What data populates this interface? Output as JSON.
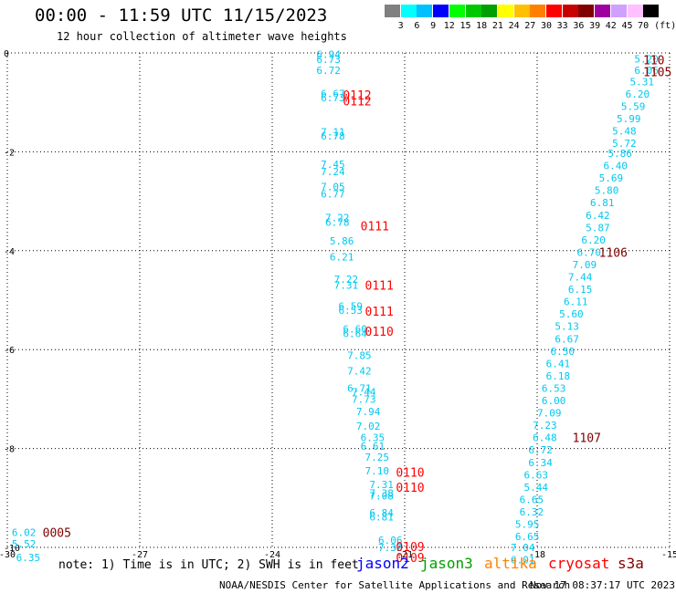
{
  "header": {
    "title": "00:00 - 11:59 UTC 11/15/2023",
    "subtitle": "12 hour collection of altimeter wave heights"
  },
  "colorbar": {
    "colors": [
      "#808080",
      "#00ffff",
      "#00c0ff",
      "#0000ff",
      "#00ff00",
      "#00c800",
      "#00a000",
      "#ffff00",
      "#ffc000",
      "#ff8000",
      "#ff0000",
      "#c80000",
      "#800000",
      "#a000a0",
      "#d0a0ff",
      "#ffc0ff",
      "#000000"
    ],
    "labels": [
      "3",
      "6",
      "9",
      "12",
      "15",
      "18",
      "21",
      "24",
      "27",
      "30",
      "33",
      "36",
      "39",
      "42",
      "45",
      "70"
    ],
    "unit": "(ft)"
  },
  "note": "note: 1) Time is in UTC; 2) SWH is in feet",
  "satellites": [
    {
      "name": "jason2",
      "color": "#0000ff"
    },
    {
      "name": "jason3",
      "color": "#00a000"
    },
    {
      "name": "altika",
      "color": "#ff8000"
    },
    {
      "name": "cryosat",
      "color": "#ff0000"
    },
    {
      "name": "s3a",
      "color": "#800000"
    }
  ],
  "footer": {
    "left": "NOAA/NESDIS Center for Satellite Applications and Research",
    "right": "Nov 17 08:37:17 UTC 2023"
  },
  "chart_data": {
    "type": "scatter",
    "xlim": [
      -30,
      -15
    ],
    "ylim": [
      -10,
      0
    ],
    "xticks": [
      -30,
      -27,
      -24,
      -21,
      -18,
      -15
    ],
    "xtick_labels": [
      "-30",
      "-27",
      "-24",
      "-21",
      "-18",
      "-15"
    ],
    "yticks": [
      0,
      -2,
      -4,
      -6,
      -8,
      -10
    ],
    "ytick_labels": [
      "0",
      "-2",
      "-4",
      "-6",
      "-8",
      "-10"
    ],
    "grid": true,
    "track_A": [
      {
        "x": -23.0,
        "y": -0.03,
        "v": "6.94"
      },
      {
        "x": -23.0,
        "y": -0.13,
        "v": "6.73"
      },
      {
        "x": -23.0,
        "y": -0.35,
        "v": "6.72"
      },
      {
        "x": -22.9,
        "y": -0.82,
        "v": "6.67"
      },
      {
        "x": -22.9,
        "y": -0.9,
        "v": "6.73"
      },
      {
        "x": -22.9,
        "y": -1.6,
        "v": "7.11"
      },
      {
        "x": -22.9,
        "y": -1.68,
        "v": "6.78"
      },
      {
        "x": -22.9,
        "y": -2.25,
        "v": "7.45"
      },
      {
        "x": -22.9,
        "y": -2.4,
        "v": "7.24"
      },
      {
        "x": -22.9,
        "y": -2.7,
        "v": "7.05"
      },
      {
        "x": -22.9,
        "y": -2.85,
        "v": "6.77"
      },
      {
        "x": -22.8,
        "y": -3.33,
        "v": "7.22"
      },
      {
        "x": -22.8,
        "y": -3.42,
        "v": "6.78"
      },
      {
        "x": -22.7,
        "y": -3.8,
        "v": "5.86"
      },
      {
        "x": -22.7,
        "y": -4.12,
        "v": "6.21"
      },
      {
        "x": -22.6,
        "y": -4.58,
        "v": "7.22"
      },
      {
        "x": -22.6,
        "y": -4.7,
        "v": "7.31"
      },
      {
        "x": -22.5,
        "y": -5.12,
        "v": "6.59"
      },
      {
        "x": -22.5,
        "y": -5.2,
        "v": "6.53"
      },
      {
        "x": -22.4,
        "y": -5.58,
        "v": "6.60"
      },
      {
        "x": -22.4,
        "y": -5.67,
        "v": "6.64"
      },
      {
        "x": -22.3,
        "y": -6.12,
        "v": "7.85"
      },
      {
        "x": -22.3,
        "y": -6.43,
        "v": "7.42"
      },
      {
        "x": -22.3,
        "y": -6.78,
        "v": "6.71"
      },
      {
        "x": -22.2,
        "y": -6.85,
        "v": "7.44"
      },
      {
        "x": -22.2,
        "y": -7.0,
        "v": "7.73"
      },
      {
        "x": -22.1,
        "y": -7.25,
        "v": "7.94"
      },
      {
        "x": -22.1,
        "y": -7.55,
        "v": "7.02"
      },
      {
        "x": -22.0,
        "y": -7.78,
        "v": "6.35"
      },
      {
        "x": -22.0,
        "y": -7.95,
        "v": "6.61"
      },
      {
        "x": -21.9,
        "y": -8.17,
        "v": "7.25"
      },
      {
        "x": -21.9,
        "y": -8.45,
        "v": "7.10"
      },
      {
        "x": -21.8,
        "y": -8.73,
        "v": "7.31"
      },
      {
        "x": -21.8,
        "y": -8.9,
        "v": "7.38"
      },
      {
        "x": -21.8,
        "y": -8.96,
        "v": "7.08"
      },
      {
        "x": -21.8,
        "y": -9.3,
        "v": "6.84"
      },
      {
        "x": -21.8,
        "y": -9.38,
        "v": "6.81"
      },
      {
        "x": -21.6,
        "y": -9.85,
        "v": "6.06"
      },
      {
        "x": -21.6,
        "y": -10.0,
        "v": "7.32"
      }
    ],
    "track_B": [
      {
        "x": -15.8,
        "y": -0.12,
        "v": "5.20"
      },
      {
        "x": -15.8,
        "y": -0.35,
        "v": "6.06"
      },
      {
        "x": -15.9,
        "y": -0.58,
        "v": "5.31"
      },
      {
        "x": -16.0,
        "y": -0.83,
        "v": "6.20"
      },
      {
        "x": -16.1,
        "y": -1.08,
        "v": "5.59"
      },
      {
        "x": -16.2,
        "y": -1.33,
        "v": "5.99"
      },
      {
        "x": -16.3,
        "y": -1.58,
        "v": "5.48"
      },
      {
        "x": -16.3,
        "y": -1.83,
        "v": "5.72"
      },
      {
        "x": -16.4,
        "y": -2.03,
        "v": "5.86"
      },
      {
        "x": -16.5,
        "y": -2.28,
        "v": "6.40"
      },
      {
        "x": -16.6,
        "y": -2.53,
        "v": "5.69"
      },
      {
        "x": -16.7,
        "y": -2.78,
        "v": "5.80"
      },
      {
        "x": -16.8,
        "y": -3.03,
        "v": "6.81"
      },
      {
        "x": -16.9,
        "y": -3.28,
        "v": "6.42"
      },
      {
        "x": -16.9,
        "y": -3.53,
        "v": "5.87"
      },
      {
        "x": -17.0,
        "y": -3.78,
        "v": "6.20"
      },
      {
        "x": -17.1,
        "y": -4.03,
        "v": "6.70"
      },
      {
        "x": -17.2,
        "y": -4.28,
        "v": "7.09"
      },
      {
        "x": -17.3,
        "y": -4.53,
        "v": "7.44"
      },
      {
        "x": -17.3,
        "y": -4.78,
        "v": "6.15"
      },
      {
        "x": -17.4,
        "y": -5.03,
        "v": "6.11"
      },
      {
        "x": -17.5,
        "y": -5.28,
        "v": "5.60"
      },
      {
        "x": -17.6,
        "y": -5.53,
        "v": "5.13"
      },
      {
        "x": -17.6,
        "y": -5.78,
        "v": "6.67"
      },
      {
        "x": -17.7,
        "y": -6.03,
        "v": "6.50"
      },
      {
        "x": -17.8,
        "y": -6.28,
        "v": "6.41"
      },
      {
        "x": -17.8,
        "y": -6.53,
        "v": "6.18"
      },
      {
        "x": -17.9,
        "y": -6.78,
        "v": "6.53"
      },
      {
        "x": -17.9,
        "y": -7.03,
        "v": "6.00"
      },
      {
        "x": -18.0,
        "y": -7.28,
        "v": "7.09"
      },
      {
        "x": -18.1,
        "y": -7.53,
        "v": "7.23"
      },
      {
        "x": -18.1,
        "y": -7.78,
        "v": "6.48"
      },
      {
        "x": -18.2,
        "y": -8.03,
        "v": "6.72"
      },
      {
        "x": -18.2,
        "y": -8.28,
        "v": "6.34"
      },
      {
        "x": -18.3,
        "y": -8.53,
        "v": "6.63"
      },
      {
        "x": -18.3,
        "y": -8.78,
        "v": "5.44"
      },
      {
        "x": -18.4,
        "y": -9.03,
        "v": "6.65"
      },
      {
        "x": -18.4,
        "y": -9.28,
        "v": "6.32"
      },
      {
        "x": -18.5,
        "y": -9.53,
        "v": "5.95"
      },
      {
        "x": -18.5,
        "y": -9.78,
        "v": "6.65"
      },
      {
        "x": -18.6,
        "y": -10.0,
        "v": "7.04"
      },
      {
        "x": -18.6,
        "y": -10.25,
        "v": "6.01"
      }
    ],
    "track_C": [
      {
        "x": -29.9,
        "y": -9.7,
        "v": "6.02"
      },
      {
        "x": -29.9,
        "y": -9.93,
        "v": "5.52"
      },
      {
        "x": -29.8,
        "y": -10.2,
        "v": "6.35"
      }
    ],
    "annotations": [
      {
        "x": -22.4,
        "y": -0.85,
        "text": "0112"
      },
      {
        "x": -22.4,
        "y": -0.97,
        "text": "0112"
      },
      {
        "x": -22.0,
        "y": -3.5,
        "text": "0111"
      },
      {
        "x": -21.9,
        "y": -4.7,
        "text": "0111"
      },
      {
        "x": -21.9,
        "y": -5.22,
        "text": "0111"
      },
      {
        "x": -21.9,
        "y": -5.63,
        "text": "0110"
      },
      {
        "x": -21.2,
        "y": -8.48,
        "text": "0110"
      },
      {
        "x": -21.2,
        "y": -8.78,
        "text": "0110"
      },
      {
        "x": -21.2,
        "y": -9.98,
        "text": "0109"
      },
      {
        "x": -21.2,
        "y": -10.2,
        "text": "0109"
      },
      {
        "x": -15.6,
        "y": -0.14,
        "text": "110"
      },
      {
        "x": -15.6,
        "y": -0.38,
        "text": "1105"
      },
      {
        "x": -16.6,
        "y": -4.03,
        "text": "1106"
      },
      {
        "x": -17.2,
        "y": -7.78,
        "text": "1107"
      },
      {
        "x": -29.2,
        "y": -9.7,
        "text": "0005"
      }
    ]
  }
}
